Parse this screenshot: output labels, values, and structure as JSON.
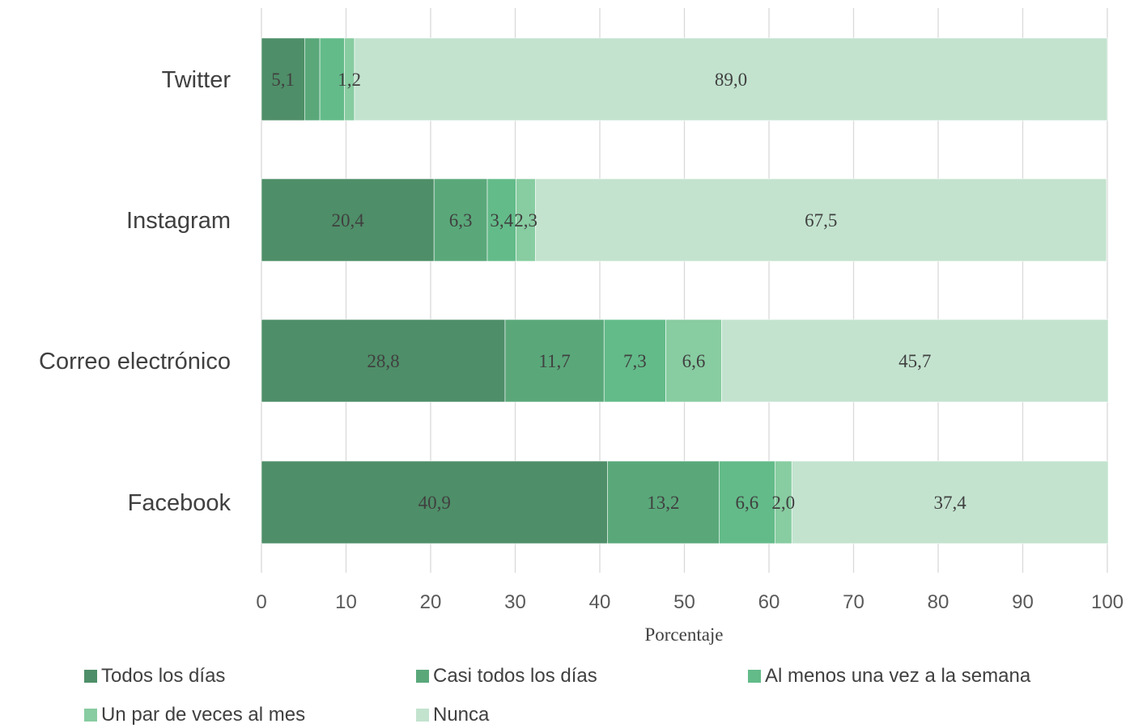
{
  "chart_data": {
    "type": "bar",
    "orientation": "horizontal",
    "stacked": true,
    "xlabel": "Porcentaje",
    "xlim": [
      0,
      100
    ],
    "xticks": [
      "0",
      "10",
      "20",
      "30",
      "40",
      "50",
      "60",
      "70",
      "80",
      "90",
      "100"
    ],
    "grid": true,
    "legend_position": "bottom",
    "categories": [
      "Twitter",
      "Instagram",
      "Correo electrónico",
      "Facebook"
    ],
    "series": [
      {
        "name": "Todos los días",
        "color": "#4e8e68",
        "values": [
          5.1,
          20.4,
          28.8,
          40.9
        ],
        "labels": [
          "5,1",
          "20,4",
          "28,8",
          "40,9"
        ]
      },
      {
        "name": "Casi todos los días",
        "color": "#5aa87a",
        "values": [
          1.8,
          6.3,
          11.7,
          13.2
        ],
        "labels": [
          "",
          "6,3",
          "11,7",
          "13,2"
        ]
      },
      {
        "name": "Al menos una vez a la semana",
        "color": "#63bb89",
        "values": [
          2.9,
          3.4,
          7.3,
          6.6
        ],
        "labels": [
          "",
          "3,4",
          "7,3",
          "6,6"
        ]
      },
      {
        "name": "Un par de veces al mes",
        "color": "#88cca1",
        "values": [
          1.2,
          2.3,
          6.6,
          2.0
        ],
        "labels": [
          "1,2",
          "2,3",
          "6,6",
          "2,0"
        ]
      },
      {
        "name": "Nunca",
        "color": "#c3e3cf",
        "values": [
          89.0,
          67.5,
          45.7,
          37.4
        ],
        "labels": [
          "89,0",
          "67,5",
          "45,7",
          "37,4"
        ]
      }
    ]
  }
}
